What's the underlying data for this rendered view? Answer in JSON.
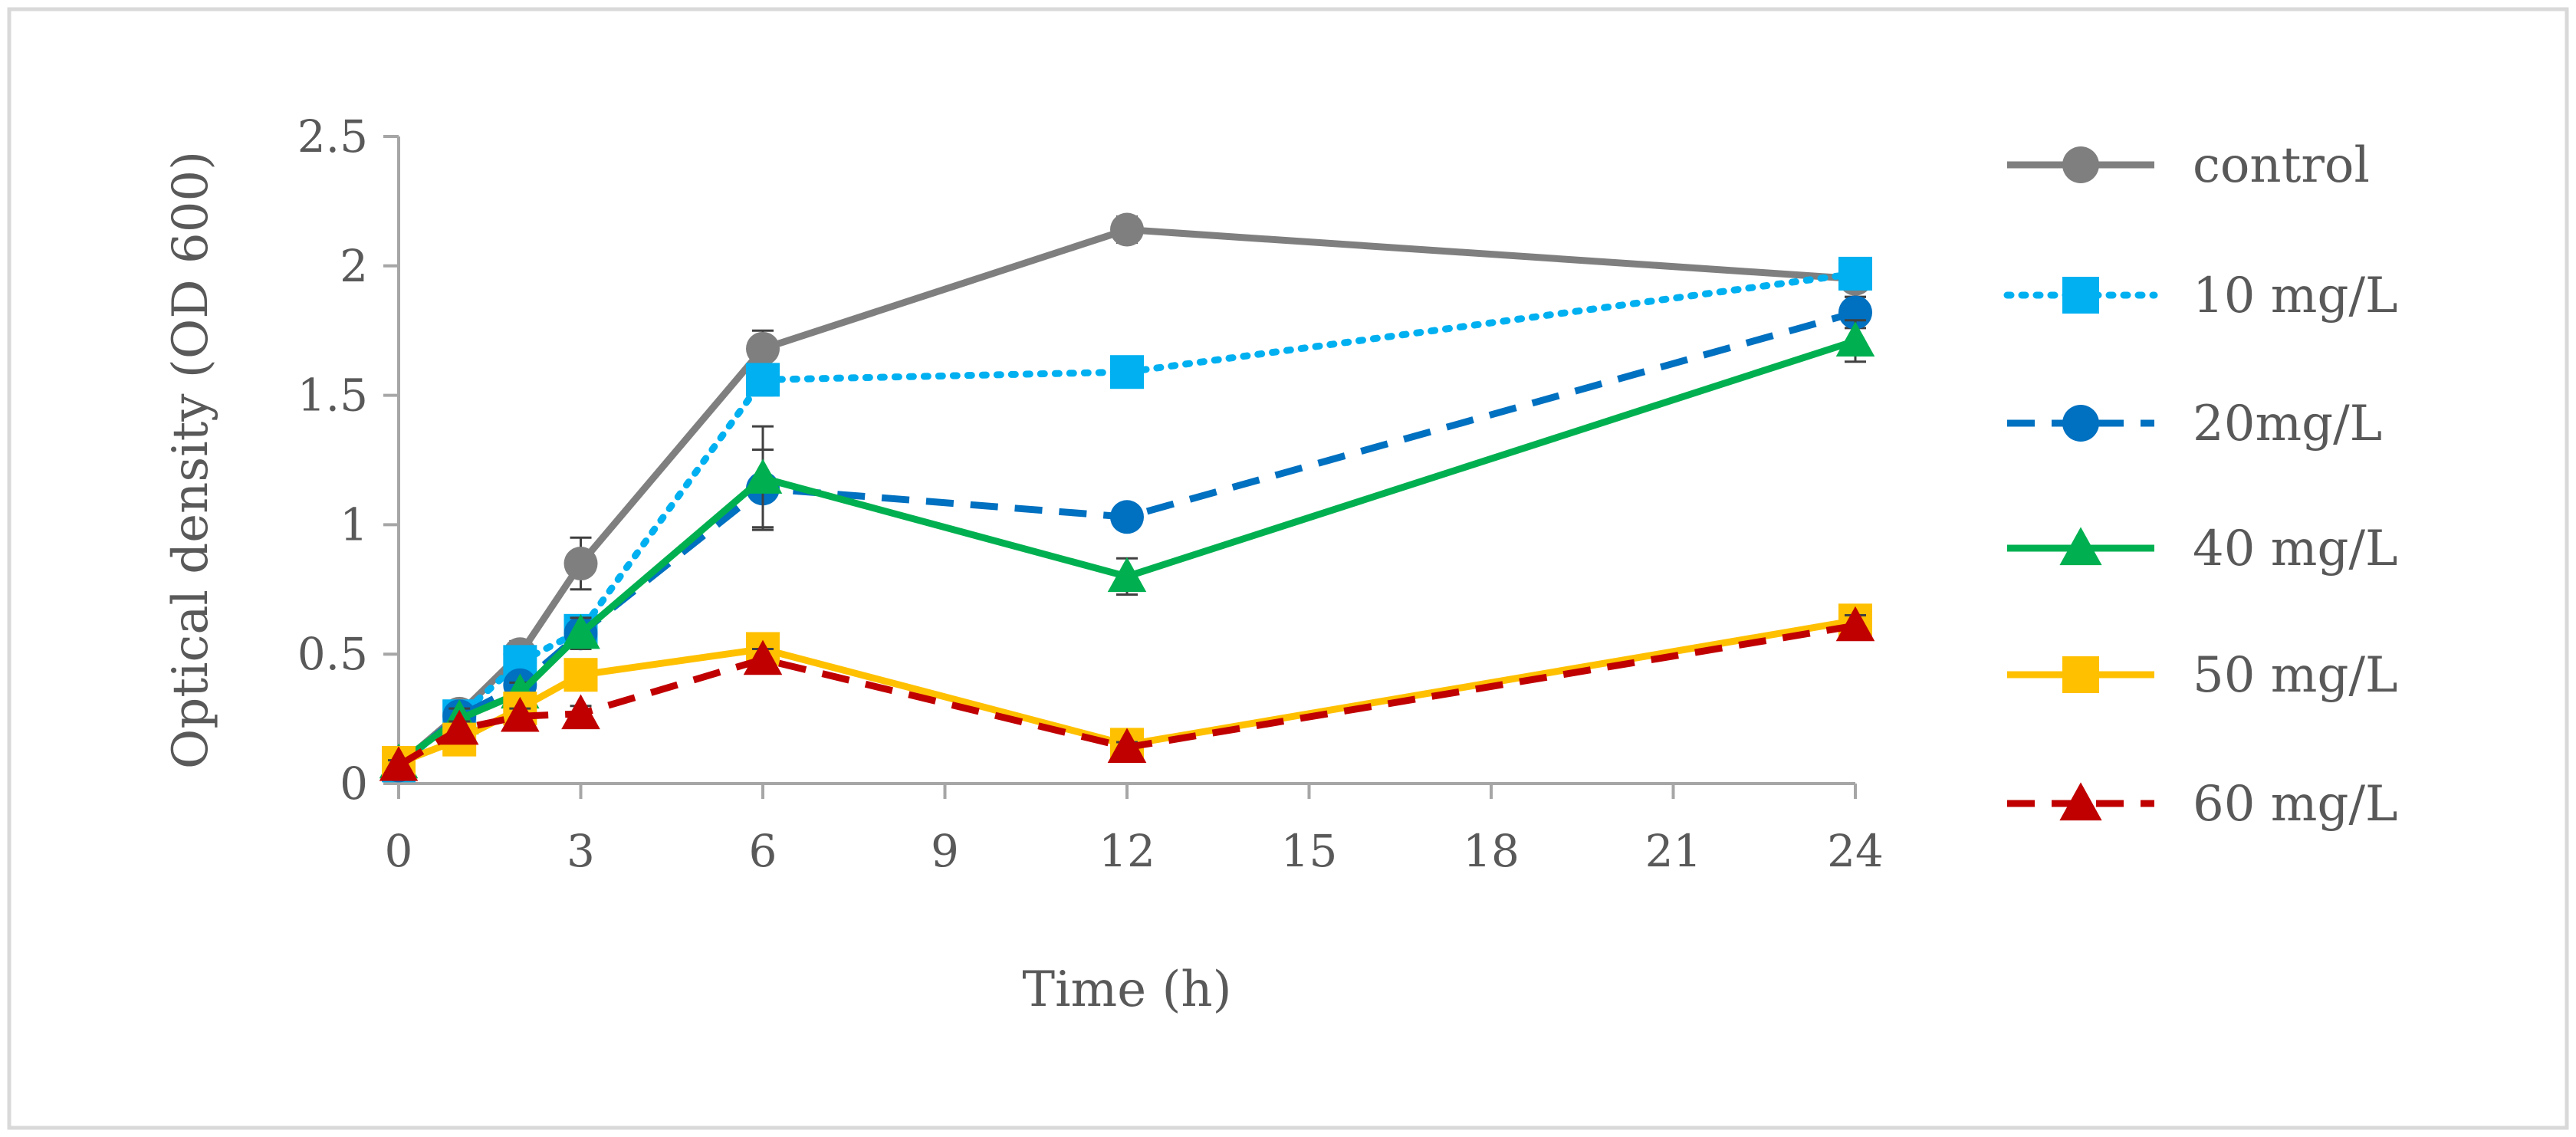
{
  "chart_data": {
    "type": "line",
    "title": "",
    "xlabel": "Time (h)",
    "ylabel": "Optical density (OD 600)",
    "xlim": [
      0,
      24
    ],
    "ylim": [
      0,
      2.5
    ],
    "x_ticks": [
      0,
      3,
      6,
      9,
      12,
      15,
      18,
      21,
      24
    ],
    "x_tick_labels": [
      "0",
      "3",
      "6",
      "9",
      "12",
      "15",
      "18",
      "21",
      "24"
    ],
    "y_ticks": [
      0,
      0.5,
      1,
      1.5,
      2,
      2.5
    ],
    "y_tick_labels": [
      "0",
      "0.5",
      "1",
      "1.5",
      "2",
      "2.5"
    ],
    "grid": false,
    "legend_position": "right",
    "series": [
      {
        "name": "control",
        "color": "#7f7f7f",
        "line_style": "solid",
        "marker": "circle",
        "x": [
          0,
          1,
          2,
          3,
          6,
          12,
          24
        ],
        "values": [
          0.07,
          0.27,
          0.5,
          0.85,
          1.68,
          2.14,
          1.95
        ],
        "errors": [
          0.02,
          0.05,
          0.05,
          0.1,
          0.07,
          0.05,
          0.07
        ]
      },
      {
        "name": "10 mg/L",
        "color": "#00b0f0",
        "line_style": "dotted",
        "marker": "square",
        "x": [
          0,
          1,
          2,
          3,
          6,
          12,
          24
        ],
        "values": [
          0.07,
          0.26,
          0.47,
          0.59,
          1.56,
          1.59,
          1.97
        ],
        "errors": [
          0.02,
          0.04,
          0.05,
          0.06,
          0.06,
          0.04,
          0.05
        ]
      },
      {
        "name": "20mg/L",
        "color": "#0070c0",
        "line_style": "dashed",
        "marker": "circle",
        "x": [
          0,
          1,
          2,
          3,
          6,
          12,
          24
        ],
        "values": [
          0.07,
          0.26,
          0.38,
          0.58,
          1.14,
          1.03,
          1.82
        ],
        "errors": [
          0.02,
          0.04,
          0.04,
          0.06,
          0.15,
          0.04,
          0.06
        ]
      },
      {
        "name": "40 mg/L",
        "color": "#00b050",
        "line_style": "solid",
        "marker": "triangle",
        "x": [
          0,
          1,
          2,
          3,
          6,
          12,
          24
        ],
        "values": [
          0.08,
          0.25,
          0.35,
          0.58,
          1.18,
          0.8,
          1.71
        ],
        "errors": [
          0.02,
          0.04,
          0.04,
          0.06,
          0.2,
          0.07,
          0.08
        ]
      },
      {
        "name": "50 mg/L",
        "color": "#ffc000",
        "line_style": "solid",
        "marker": "square",
        "x": [
          0,
          1,
          2,
          3,
          6,
          12,
          24
        ],
        "values": [
          0.08,
          0.17,
          0.29,
          0.42,
          0.52,
          0.15,
          0.63
        ],
        "errors": [
          0.02,
          0.03,
          0.03,
          0.04,
          0.04,
          0.02,
          0.04
        ]
      },
      {
        "name": "60 mg/L",
        "color": "#c00000",
        "line_style": "dashed",
        "marker": "triangle",
        "x": [
          0,
          1,
          2,
          3,
          6,
          12,
          24
        ],
        "values": [
          0.07,
          0.21,
          0.26,
          0.27,
          0.48,
          0.14,
          0.61
        ],
        "errors": [
          0.02,
          0.03,
          0.03,
          0.03,
          0.04,
          0.02,
          0.04
        ]
      }
    ]
  }
}
